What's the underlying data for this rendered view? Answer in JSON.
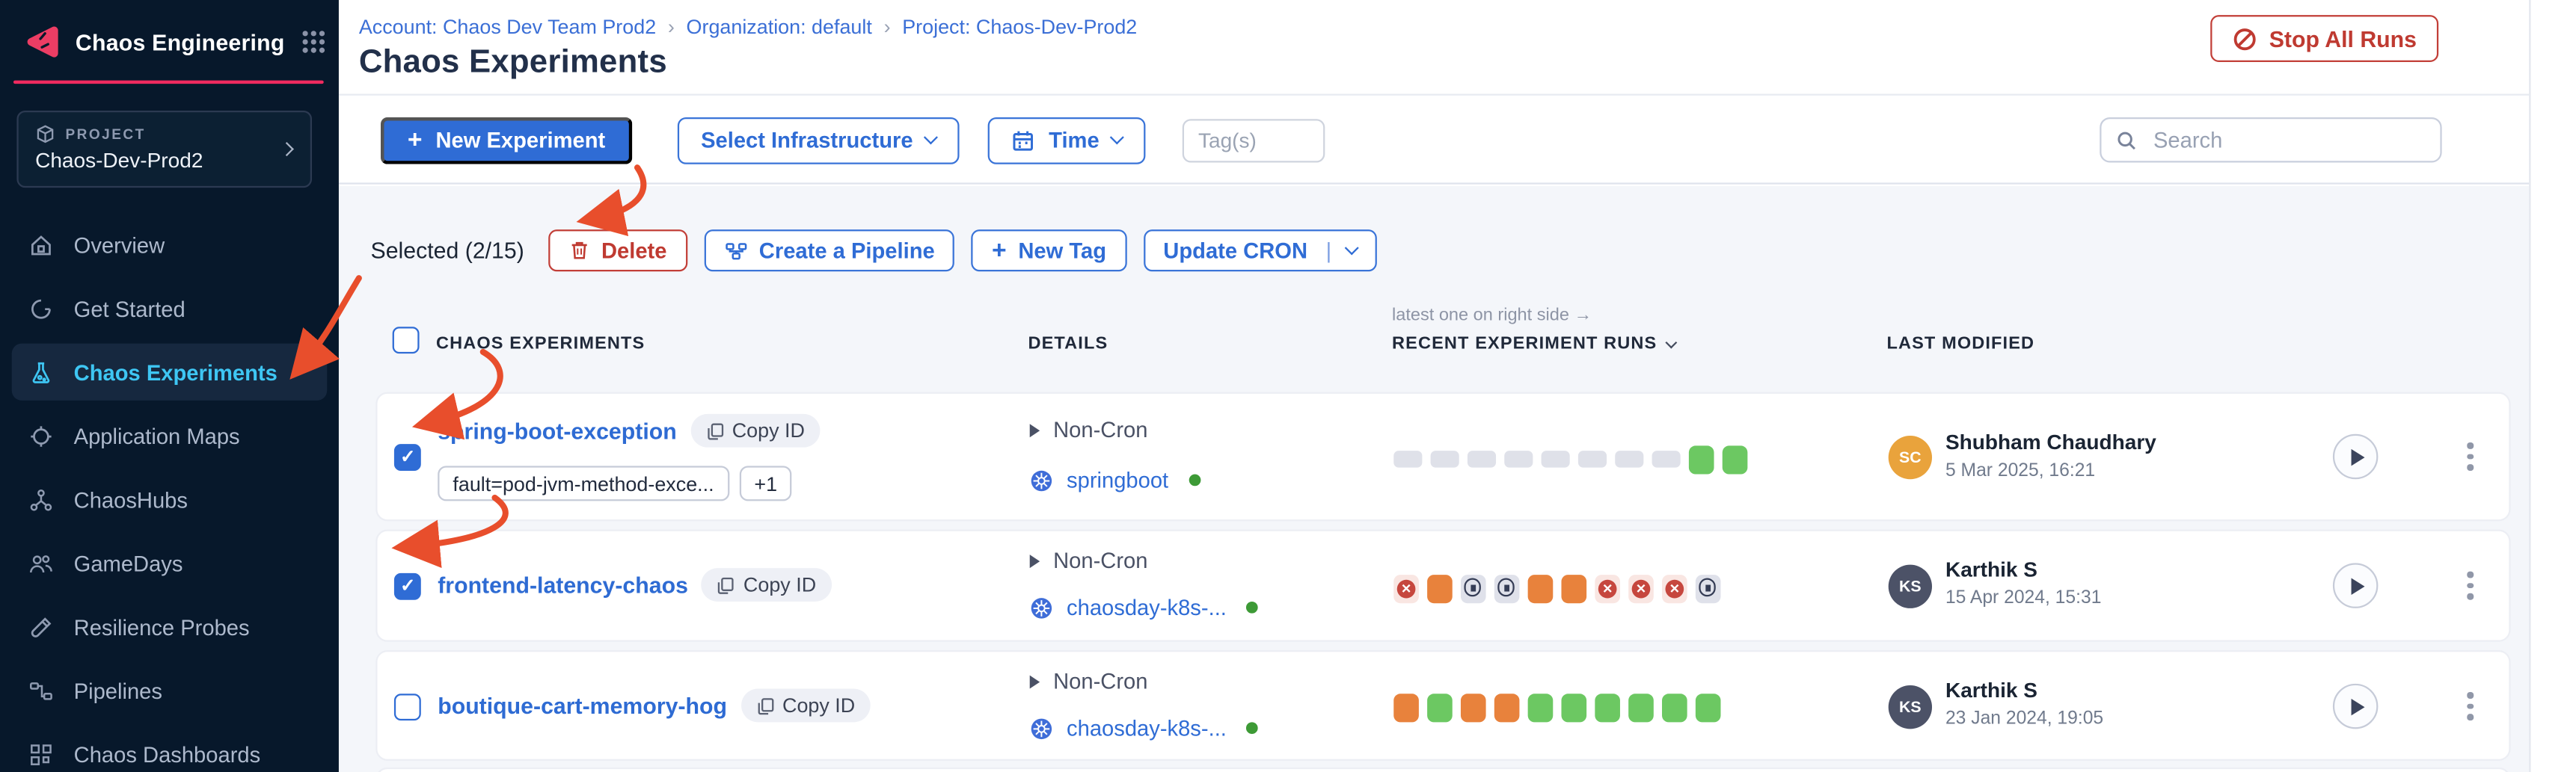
{
  "app": {
    "title": "Chaos Engineering"
  },
  "sidebar": {
    "project_label": "PROJECT",
    "project_name": "Chaos-Dev-Prod2",
    "items": [
      {
        "label": "Overview",
        "active": false
      },
      {
        "label": "Get Started",
        "active": false
      },
      {
        "label": "Chaos Experiments",
        "active": true
      },
      {
        "label": "Application Maps",
        "active": false
      },
      {
        "label": "ChaosHubs",
        "active": false
      },
      {
        "label": "GameDays",
        "active": false
      },
      {
        "label": "Resilience Probes",
        "active": false
      },
      {
        "label": "Pipelines",
        "active": false
      },
      {
        "label": "Chaos Dashboards",
        "active": false
      }
    ]
  },
  "header": {
    "breadcrumb": [
      "Account: Chaos Dev Team Prod2",
      "Organization: default",
      "Project: Chaos-Dev-Prod2"
    ],
    "separator": "›",
    "title": "Chaos Experiments",
    "stop_all_runs_label": "Stop All Runs"
  },
  "toolbar": {
    "new_experiment_label": "New Experiment",
    "select_infrastructure_label": "Select Infrastructure",
    "time_label": "Time",
    "tags_placeholder": "Tag(s)",
    "search_placeholder": "Search"
  },
  "selection_bar": {
    "selected_text": "Selected (2/15)",
    "delete_label": "Delete",
    "create_pipeline_label": "Create a Pipeline",
    "new_tag_label": "New Tag",
    "update_cron_label": "Update CRON"
  },
  "table": {
    "annotation": "latest one on right side →",
    "columns": {
      "experiments": "CHAOS EXPERIMENTS",
      "details": "DETAILS",
      "runs": "RECENT EXPERIMENT RUNS",
      "last_modified": "LAST MODIFIED"
    }
  },
  "rows": [
    {
      "name": "spring-boot-exception",
      "checked": true,
      "copy_id_label": "Copy ID",
      "tags": [
        "fault=pod-jvm-method-exce..."
      ],
      "tags_more": "+1",
      "schedule": "Non-Cron",
      "infrastructure": "springboot",
      "infra_status_color": "#3d9a36",
      "runs": [
        "empty",
        "empty",
        "empty",
        "empty",
        "empty",
        "empty",
        "empty",
        "empty",
        "green",
        "green"
      ],
      "modified_by": "Shubham Chaudhary",
      "modified_on": "5 Mar 2025, 16:21",
      "avatar_initials": "SC",
      "avatar_color": "#e9a33c"
    },
    {
      "name": "frontend-latency-chaos",
      "checked": true,
      "copy_id_label": "Copy ID",
      "schedule": "Non-Cron",
      "infrastructure": "chaosday-k8s-...",
      "infra_status_color": "#3d9a36",
      "runs": [
        "fail",
        "orange",
        "stop",
        "stop",
        "orange",
        "orange",
        "fail",
        "fail",
        "fail",
        "stop"
      ],
      "modified_by": "Karthik S",
      "modified_on": "15 Apr 2024, 15:31",
      "avatar_initials": "KS",
      "avatar_color": "#4c5267"
    },
    {
      "name": "boutique-cart-memory-hog",
      "checked": false,
      "copy_id_label": "Copy ID",
      "schedule": "Non-Cron",
      "infrastructure": "chaosday-k8s-...",
      "infra_status_color": "#3d9a36",
      "runs": [
        "orange",
        "green",
        "orange",
        "orange",
        "green",
        "green",
        "green",
        "green",
        "green",
        "green"
      ],
      "modified_by": "Karthik S",
      "modified_on": "23 Jan 2024, 19:05",
      "avatar_initials": "KS",
      "avatar_color": "#4c5267"
    }
  ],
  "run_status_colors": {
    "completed_green": "#6cc862",
    "warning_orange": "#e8823c",
    "failed_red": "#c6473e",
    "stopped_gray": "#343c55",
    "empty_gray": "#dfe1e9"
  },
  "accent_colors": {
    "primary_blue": "#2f6cd5",
    "danger_red": "#c23a31",
    "brand_pink": "#ee2a5f",
    "active_nav_blue": "#3ec6f3",
    "annotation_arrow": "#e84e2c"
  }
}
